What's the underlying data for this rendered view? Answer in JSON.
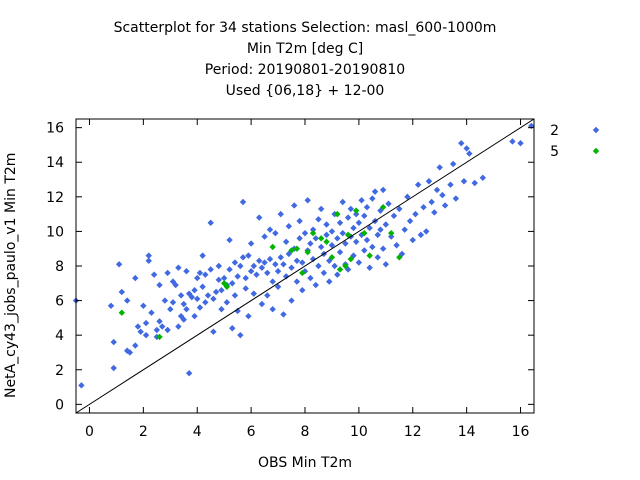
{
  "chart_data": {
    "type": "scatter",
    "title_lines": [
      "Scatterplot for   34 stations Selection: masl_600-1000m",
      "Min T2m [deg C]",
      "Period: 20190801-20190810",
      "Used {06,18} + 12-00"
    ],
    "xlabel": "OBS Min T2m",
    "ylabel": "NetA_cy43_jobs_paulo_v1 Min T2m",
    "xlim": [
      -0.5,
      16.5
    ],
    "ylim": [
      -0.5,
      16.5
    ],
    "xticks": [
      0,
      2,
      4,
      6,
      8,
      10,
      12,
      14,
      16
    ],
    "yticks": [
      0,
      2,
      4,
      6,
      8,
      10,
      12,
      14,
      16
    ],
    "grid": false,
    "legend_position": "right",
    "reference_line": "y = x",
    "series": [
      {
        "name": "2",
        "color": "#4169e1",
        "marker": "diamond",
        "points": [
          [
            -0.5,
            6.0
          ],
          [
            -0.3,
            1.1
          ],
          [
            0.8,
            5.7
          ],
          [
            0.9,
            3.6
          ],
          [
            0.9,
            2.1
          ],
          [
            1.1,
            8.1
          ],
          [
            1.2,
            6.5
          ],
          [
            1.4,
            6.0
          ],
          [
            1.4,
            3.1
          ],
          [
            1.5,
            3.0
          ],
          [
            1.7,
            3.4
          ],
          [
            1.7,
            7.3
          ],
          [
            1.8,
            4.5
          ],
          [
            1.9,
            4.2
          ],
          [
            2.0,
            5.7
          ],
          [
            2.1,
            4.7
          ],
          [
            2.1,
            4.0
          ],
          [
            2.2,
            8.6
          ],
          [
            2.2,
            8.3
          ],
          [
            2.3,
            5.3
          ],
          [
            2.4,
            7.5
          ],
          [
            2.5,
            4.3
          ],
          [
            2.5,
            3.9
          ],
          [
            2.6,
            4.8
          ],
          [
            2.6,
            6.9
          ],
          [
            2.7,
            4.5
          ],
          [
            2.8,
            6.0
          ],
          [
            2.9,
            4.3
          ],
          [
            2.9,
            7.6
          ],
          [
            3.0,
            5.5
          ],
          [
            3.1,
            5.9
          ],
          [
            3.1,
            7.1
          ],
          [
            3.2,
            6.9
          ],
          [
            3.3,
            4.5
          ],
          [
            3.3,
            7.9
          ],
          [
            3.4,
            5.1
          ],
          [
            3.4,
            6.3
          ],
          [
            3.5,
            5.8
          ],
          [
            3.5,
            4.9
          ],
          [
            3.6,
            7.7
          ],
          [
            3.6,
            5.5
          ],
          [
            3.7,
            6.4
          ],
          [
            3.7,
            1.8
          ],
          [
            3.8,
            6.2
          ],
          [
            3.9,
            6.6
          ],
          [
            3.9,
            5.1
          ],
          [
            4.0,
            7.3
          ],
          [
            4.0,
            6.1
          ],
          [
            4.1,
            7.6
          ],
          [
            4.1,
            5.6
          ],
          [
            4.2,
            8.6
          ],
          [
            4.2,
            6.8
          ],
          [
            4.3,
            7.5
          ],
          [
            4.3,
            5.9
          ],
          [
            4.4,
            6.3
          ],
          [
            4.5,
            10.5
          ],
          [
            4.5,
            7.8
          ],
          [
            4.6,
            6.1
          ],
          [
            4.6,
            4.2
          ],
          [
            4.7,
            6.5
          ],
          [
            4.8,
            7.2
          ],
          [
            4.8,
            8.0
          ],
          [
            4.9,
            6.6
          ],
          [
            4.9,
            5.5
          ],
          [
            5.0,
            7.3
          ],
          [
            5.1,
            6.9
          ],
          [
            5.1,
            5.9
          ],
          [
            5.2,
            7.8
          ],
          [
            5.2,
            9.5
          ],
          [
            5.3,
            7.0
          ],
          [
            5.3,
            4.4
          ],
          [
            5.4,
            8.2
          ],
          [
            5.4,
            6.3
          ],
          [
            5.5,
            7.4
          ],
          [
            5.5,
            5.4
          ],
          [
            5.6,
            8.0
          ],
          [
            5.6,
            4.0
          ],
          [
            5.7,
            8.5
          ],
          [
            5.7,
            11.7
          ],
          [
            5.8,
            7.3
          ],
          [
            5.8,
            6.7
          ],
          [
            5.9,
            8.6
          ],
          [
            5.9,
            5.1
          ],
          [
            6.0,
            7.7
          ],
          [
            6.0,
            9.3
          ],
          [
            6.1,
            8.0
          ],
          [
            6.1,
            6.4
          ],
          [
            6.2,
            7.5
          ],
          [
            6.3,
            10.8
          ],
          [
            6.3,
            8.3
          ],
          [
            6.4,
            7.9
          ],
          [
            6.4,
            5.8
          ],
          [
            6.5,
            9.7
          ],
          [
            6.5,
            8.2
          ],
          [
            6.6,
            7.6
          ],
          [
            6.6,
            6.3
          ],
          [
            6.7,
            8.4
          ],
          [
            6.7,
            10.1
          ],
          [
            6.8,
            7.1
          ],
          [
            6.8,
            5.5
          ],
          [
            6.9,
            8.1
          ],
          [
            6.9,
            9.9
          ],
          [
            7.0,
            7.7
          ],
          [
            7.0,
            6.8
          ],
          [
            7.1,
            8.5
          ],
          [
            7.1,
            11.0
          ],
          [
            7.2,
            8.1
          ],
          [
            7.2,
            5.2
          ],
          [
            7.3,
            9.4
          ],
          [
            7.3,
            7.4
          ],
          [
            7.4,
            8.7
          ],
          [
            7.4,
            10.3
          ],
          [
            7.5,
            7.9
          ],
          [
            7.5,
            6.0
          ],
          [
            7.6,
            9.0
          ],
          [
            7.6,
            11.5
          ],
          [
            7.7,
            8.3
          ],
          [
            7.7,
            7.1
          ],
          [
            7.8,
            9.6
          ],
          [
            7.8,
            10.6
          ],
          [
            7.9,
            8.2
          ],
          [
            7.9,
            6.6
          ],
          [
            8.0,
            9.9
          ],
          [
            8.0,
            7.7
          ],
          [
            8.1,
            8.9
          ],
          [
            8.1,
            11.8
          ],
          [
            8.2,
            9.3
          ],
          [
            8.2,
            7.3
          ],
          [
            8.3,
            10.1
          ],
          [
            8.3,
            8.4
          ],
          [
            8.4,
            9.6
          ],
          [
            8.4,
            6.9
          ],
          [
            8.5,
            10.7
          ],
          [
            8.5,
            8.0
          ],
          [
            8.6,
            9.1
          ],
          [
            8.6,
            11.3
          ],
          [
            8.7,
            8.7
          ],
          [
            8.7,
            7.6
          ],
          [
            8.8,
            9.8
          ],
          [
            8.8,
            10.4
          ],
          [
            8.9,
            8.3
          ],
          [
            8.9,
            7.1
          ],
          [
            9.0,
            10.0
          ],
          [
            9.0,
            9.2
          ],
          [
            9.1,
            11.0
          ],
          [
            9.1,
            8.0
          ],
          [
            9.2,
            9.6
          ],
          [
            9.2,
            7.5
          ],
          [
            9.3,
            10.5
          ],
          [
            9.3,
            8.8
          ],
          [
            9.4,
            9.9
          ],
          [
            9.4,
            11.7
          ],
          [
            9.5,
            9.3
          ],
          [
            9.5,
            8.1
          ],
          [
            9.6,
            10.8
          ],
          [
            9.6,
            7.8
          ],
          [
            9.7,
            9.7
          ],
          [
            9.7,
            11.3
          ],
          [
            9.8,
            10.2
          ],
          [
            9.8,
            8.6
          ],
          [
            9.9,
            11.0
          ],
          [
            9.9,
            9.4
          ],
          [
            10.0,
            10.5
          ],
          [
            10.0,
            8.2
          ],
          [
            10.1,
            11.8
          ],
          [
            10.1,
            9.8
          ],
          [
            10.2,
            10.9
          ],
          [
            10.2,
            8.9
          ],
          [
            10.3,
            11.4
          ],
          [
            10.3,
            9.5
          ],
          [
            10.4,
            10.2
          ],
          [
            10.4,
            7.9
          ],
          [
            10.5,
            11.9
          ],
          [
            10.5,
            9.1
          ],
          [
            10.6,
            10.6
          ],
          [
            10.6,
            12.3
          ],
          [
            10.7,
            9.8
          ],
          [
            10.7,
            8.5
          ],
          [
            10.8,
            11.2
          ],
          [
            10.8,
            10.1
          ],
          [
            10.9,
            9.0
          ],
          [
            10.9,
            12.4
          ],
          [
            11.0,
            10.4
          ],
          [
            11.0,
            8.1
          ],
          [
            11.1,
            11.6
          ],
          [
            11.2,
            9.7
          ],
          [
            11.3,
            10.9
          ],
          [
            11.4,
            9.2
          ],
          [
            11.5,
            11.3
          ],
          [
            11.6,
            8.7
          ],
          [
            11.7,
            10.1
          ],
          [
            11.8,
            12.0
          ],
          [
            11.9,
            10.6
          ],
          [
            12.0,
            9.5
          ],
          [
            12.1,
            11.0
          ],
          [
            12.2,
            12.7
          ],
          [
            12.3,
            9.8
          ],
          [
            12.4,
            11.4
          ],
          [
            12.5,
            10.0
          ],
          [
            12.6,
            12.9
          ],
          [
            12.7,
            11.7
          ],
          [
            12.8,
            11.1
          ],
          [
            12.9,
            12.4
          ],
          [
            13.0,
            13.7
          ],
          [
            13.1,
            12.1
          ],
          [
            13.2,
            11.5
          ],
          [
            13.4,
            12.7
          ],
          [
            13.5,
            13.9
          ],
          [
            13.6,
            11.9
          ],
          [
            13.8,
            15.1
          ],
          [
            13.9,
            12.9
          ],
          [
            14.0,
            14.8
          ],
          [
            14.1,
            14.5
          ],
          [
            14.3,
            12.8
          ],
          [
            14.6,
            13.1
          ],
          [
            15.7,
            15.2
          ],
          [
            16.0,
            15.1
          ],
          [
            16.4,
            16.1
          ]
        ]
      },
      {
        "name": "5",
        "color": "#00b400",
        "marker": "diamond",
        "points": [
          [
            1.2,
            5.3
          ],
          [
            2.6,
            3.9
          ],
          [
            5.0,
            7.0
          ],
          [
            5.1,
            6.8
          ],
          [
            6.8,
            9.1
          ],
          [
            7.5,
            8.9
          ],
          [
            7.7,
            9.0
          ],
          [
            7.9,
            7.6
          ],
          [
            8.1,
            8.8
          ],
          [
            8.3,
            9.9
          ],
          [
            8.6,
            9.6
          ],
          [
            8.8,
            9.4
          ],
          [
            9.0,
            8.5
          ],
          [
            9.2,
            11.0
          ],
          [
            9.3,
            7.8
          ],
          [
            9.5,
            8.0
          ],
          [
            9.6,
            9.8
          ],
          [
            9.7,
            8.4
          ],
          [
            9.9,
            11.2
          ],
          [
            10.2,
            9.9
          ],
          [
            10.4,
            8.6
          ],
          [
            10.9,
            11.4
          ],
          [
            11.2,
            9.9
          ],
          [
            11.5,
            8.5
          ]
        ]
      }
    ]
  }
}
